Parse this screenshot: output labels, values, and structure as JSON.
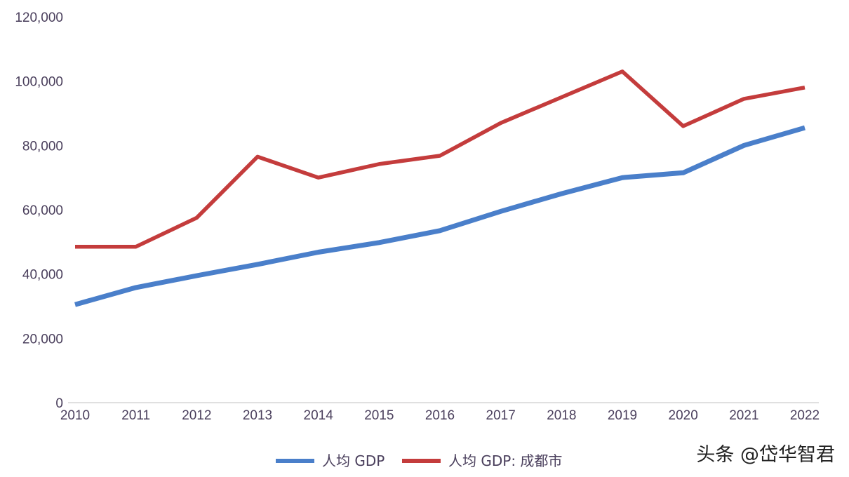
{
  "chart_data": {
    "type": "line",
    "title": "",
    "xlabel": "",
    "ylabel": "",
    "categories": [
      "2010",
      "2011",
      "2012",
      "2013",
      "2014",
      "2015",
      "2016",
      "2017",
      "2018",
      "2019",
      "2020",
      "2021",
      "2022"
    ],
    "y_ticks": [
      "0",
      "20,000",
      "40,000",
      "60,000",
      "80,000",
      "100,000",
      "120,000"
    ],
    "ylim": [
      0,
      120000
    ],
    "grid": false,
    "legend_position": "bottom-center",
    "series": [
      {
        "name": "人均 GDP",
        "color": "#4a7fca",
        "values": [
          30500,
          35800,
          39500,
          43000,
          46800,
          49800,
          53500,
          59500,
          65000,
          70000,
          71500,
          80000,
          85500
        ]
      },
      {
        "name": "人均 GDP: 成都市",
        "color": "#c43c3c",
        "values": [
          48500,
          48500,
          57500,
          76500,
          70000,
          74200,
          76800,
          87000,
          95000,
          103000,
          86000,
          94500,
          98000
        ]
      }
    ]
  },
  "watermark": {
    "text": "头条 @岱华智君"
  }
}
